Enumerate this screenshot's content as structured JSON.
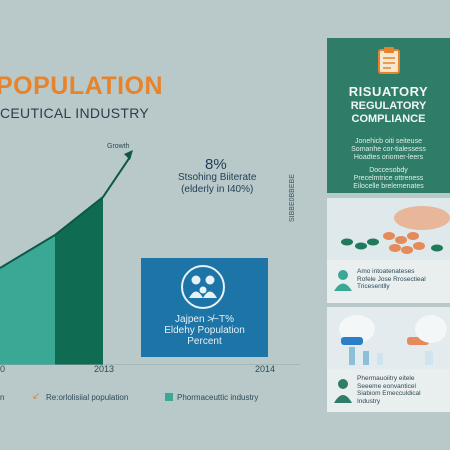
{
  "header": {
    "title": "POPULATION",
    "subtitle": "CEUTICAL INDUSTRY"
  },
  "chart": {
    "growth_label": "Growth",
    "stat_value": "8%",
    "stat_line1": "Stsohing Biiterate",
    "stat_line2": "(elderly in I40%)",
    "side_text": "SIBBE0BBEBE",
    "x_labels": [
      "0",
      "2013",
      "2014"
    ]
  },
  "info_box": {
    "line1": "Jajpen ≯−T%",
    "line2": "Eldehy Population",
    "line3": "Percent"
  },
  "legend": {
    "item1": "n",
    "item2": "Re:orlolisiial population",
    "item3": "Phormaceuttic industry"
  },
  "panel": {
    "title": "RISUATORY",
    "subtitle_line1": "REGULATORY",
    "subtitle_line2": "COMPLIANCE",
    "body1": "Jonehicb oiti seiteuse",
    "body2": "Somanhe cor-tialessess",
    "body3": "Hoadtes oriomer-leers",
    "body4": "Doccesobdy",
    "body5": "Precelmtrice ottreness",
    "body6": "Eilocelle brelemenates"
  },
  "cards": {
    "card1_line1": "Amo intoatenateses",
    "card1_line2": "Rofele Jose Rrosectieal",
    "card1_line3": "Tricesentlly",
    "card2_line1": "Phermauoiitry eitele",
    "card2_line2": "Seeeme eonvanticel",
    "card2_line3": "Siabiom Emecculdical",
    "card2_line4": "Industry"
  },
  "colors": {
    "background": "#b9c9c9",
    "title_orange": "#e6832b",
    "bar_teal": "#3aa894",
    "bar_darkgreen": "#0f6b52",
    "box_blue": "#1d74a6",
    "panel_green": "#2f7d68"
  }
}
